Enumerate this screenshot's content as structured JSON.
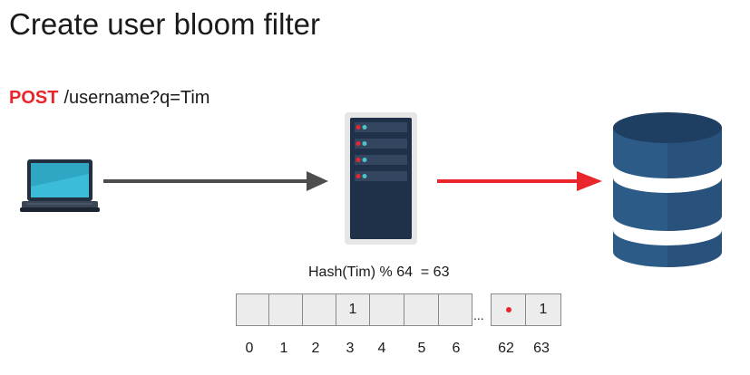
{
  "title": "Create user bloom filter",
  "request": {
    "method": "POST",
    "path": "/username?q=Tim"
  },
  "hash_label": "Hash(Tim) % 64  = 63",
  "colors": {
    "accent": "#e8262b",
    "arrow_gray": "#4d4d4d",
    "db_blue": "#2d5b87",
    "server_dark": "#1f3049"
  },
  "icons": {
    "client": "laptop-icon",
    "server": "server-icon",
    "database": "database-icon"
  },
  "bit_array": {
    "cells": [
      "",
      "",
      "",
      "1",
      "",
      "",
      "",
      "",
      "1"
    ],
    "ellipsis": "...",
    "indices": [
      "0",
      "1",
      "2",
      "3",
      "4",
      "5",
      "6",
      "62",
      "63"
    ]
  }
}
